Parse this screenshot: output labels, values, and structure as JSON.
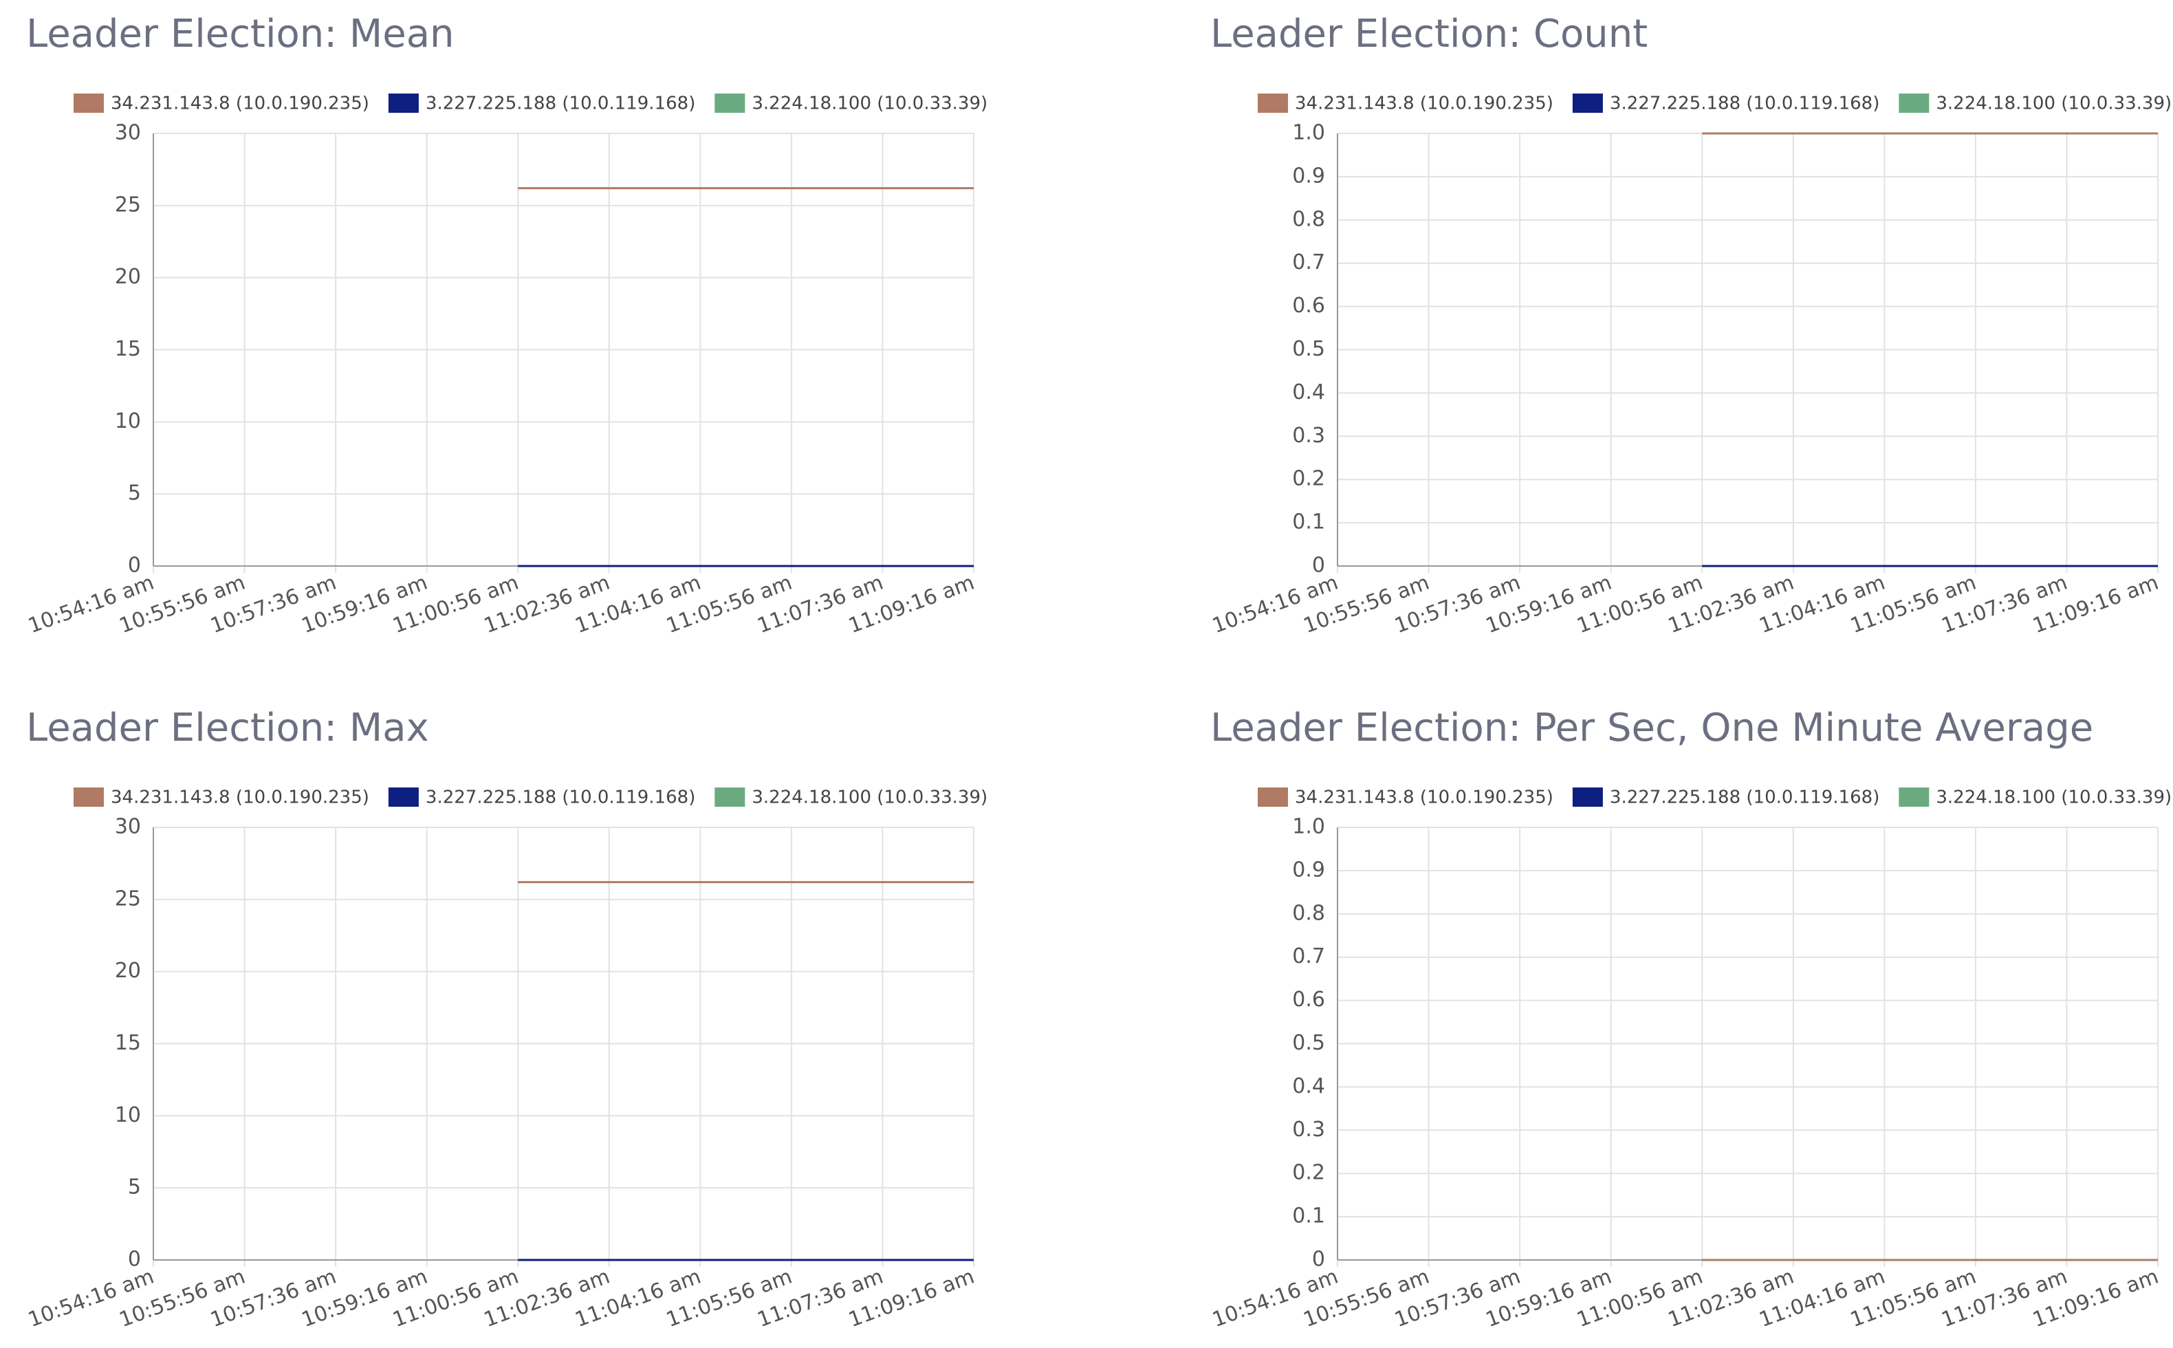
{
  "chart_data": [
    {
      "type": "line",
      "title": "Leader Election: Mean",
      "categories": [
        "10:54:16 am",
        "10:55:56 am",
        "10:57:36 am",
        "10:59:16 am",
        "11:00:56 am",
        "11:02:36 am",
        "11:04:16 am",
        "11:05:56 am",
        "11:07:36 am",
        "11:09:16 am"
      ],
      "series": [
        {
          "name": "34.231.143.8 (10.0.190.235)",
          "color": "#b07a64",
          "values": [
            null,
            null,
            null,
            null,
            26.2,
            26.2,
            26.2,
            26.2,
            26.2,
            26.2
          ]
        },
        {
          "name": "3.227.225.188 (10.0.119.168)",
          "color": "#0d1f80",
          "values": [
            null,
            null,
            null,
            null,
            0,
            0,
            0,
            0,
            0,
            0
          ]
        },
        {
          "name": "3.224.18.100 (10.0.33.39)",
          "color": "#6aaa80",
          "values": [
            null,
            null,
            null,
            null,
            0,
            0,
            0,
            0,
            0,
            0
          ]
        }
      ],
      "ylim": [
        0,
        30
      ],
      "yticks": [
        0,
        5,
        10,
        15,
        20,
        25,
        30
      ],
      "grid": true
    },
    {
      "type": "line",
      "title": "Leader Election: Count",
      "categories": [
        "10:54:16 am",
        "10:55:56 am",
        "10:57:36 am",
        "10:59:16 am",
        "11:00:56 am",
        "11:02:36 am",
        "11:04:16 am",
        "11:05:56 am",
        "11:07:36 am",
        "11:09:16 am"
      ],
      "series": [
        {
          "name": "34.231.143.8 (10.0.190.235)",
          "color": "#b07a64",
          "values": [
            null,
            null,
            null,
            null,
            1,
            1,
            1,
            1,
            1,
            1
          ]
        },
        {
          "name": "3.227.225.188 (10.0.119.168)",
          "color": "#0d1f80",
          "values": [
            null,
            null,
            null,
            null,
            0,
            0,
            0,
            0,
            0,
            0
          ]
        },
        {
          "name": "3.224.18.100 (10.0.33.39)",
          "color": "#6aaa80",
          "values": [
            null,
            null,
            null,
            null,
            0,
            0,
            0,
            0,
            0,
            0
          ]
        }
      ],
      "ylim": [
        0,
        1
      ],
      "yticks": [
        0,
        0.1,
        0.2,
        0.3,
        0.4,
        0.5,
        0.6,
        0.7,
        0.8,
        0.9,
        {
          "value": 1,
          "label": "1.0"
        }
      ],
      "grid": true
    },
    {
      "type": "line",
      "title": "Leader Election: Max",
      "categories": [
        "10:54:16 am",
        "10:55:56 am",
        "10:57:36 am",
        "10:59:16 am",
        "11:00:56 am",
        "11:02:36 am",
        "11:04:16 am",
        "11:05:56 am",
        "11:07:36 am",
        "11:09:16 am"
      ],
      "series": [
        {
          "name": "34.231.143.8 (10.0.190.235)",
          "color": "#b07a64",
          "values": [
            null,
            null,
            null,
            null,
            26.2,
            26.2,
            26.2,
            26.2,
            26.2,
            26.2
          ]
        },
        {
          "name": "3.227.225.188 (10.0.119.168)",
          "color": "#0d1f80",
          "values": [
            null,
            null,
            null,
            null,
            0,
            0,
            0,
            0,
            0,
            0
          ]
        },
        {
          "name": "3.224.18.100 (10.0.33.39)",
          "color": "#6aaa80",
          "values": [
            null,
            null,
            null,
            null,
            0,
            0,
            0,
            0,
            0,
            0
          ]
        }
      ],
      "ylim": [
        0,
        30
      ],
      "yticks": [
        0,
        5,
        10,
        15,
        20,
        25,
        30
      ],
      "grid": true
    },
    {
      "type": "line",
      "title": "Leader Election: Per Sec, One Minute Average",
      "categories": [
        "10:54:16 am",
        "10:55:56 am",
        "10:57:36 am",
        "10:59:16 am",
        "11:00:56 am",
        "11:02:36 am",
        "11:04:16 am",
        "11:05:56 am",
        "11:07:36 am",
        "11:09:16 am"
      ],
      "series": [
        {
          "name": "34.231.143.8 (10.0.190.235)",
          "color": "#b07a64",
          "values": [
            null,
            null,
            null,
            null,
            0,
            0,
            0,
            0,
            0,
            0
          ]
        },
        {
          "name": "3.227.225.188 (10.0.119.168)",
          "color": "#0d1f80",
          "values": [
            null,
            null,
            null,
            null,
            0,
            0,
            0,
            0,
            0,
            0
          ]
        },
        {
          "name": "3.224.18.100 (10.0.33.39)",
          "color": "#6aaa80",
          "values": [
            null,
            null,
            null,
            null,
            0,
            0,
            0,
            0,
            0,
            0
          ]
        }
      ],
      "ylim": [
        0,
        1
      ],
      "yticks": [
        0,
        0.1,
        0.2,
        0.3,
        0.4,
        0.5,
        0.6,
        0.7,
        0.8,
        0.9,
        {
          "value": 1,
          "label": "1.0"
        }
      ],
      "grid": true
    }
  ]
}
